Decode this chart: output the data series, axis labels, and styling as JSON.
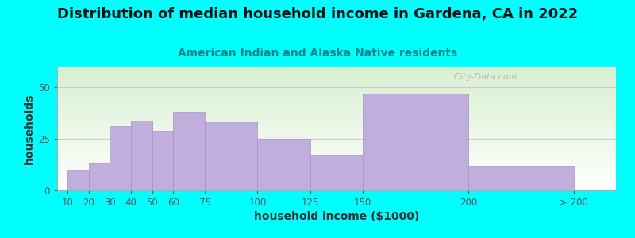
{
  "title": "Distribution of median household income in Gardena, CA in 2022",
  "subtitle": "American Indian and Alaska Native residents",
  "xlabel": "household income ($1000)",
  "ylabel": "households",
  "bg_outer": "#00FFFF",
  "bg_inner_colors": [
    "#d8f0d0",
    "#f5fff5",
    "#ffffff"
  ],
  "bar_color": "#c0aedd",
  "bar_edge_color": "#a890cc",
  "bar_positions": [
    10,
    20,
    30,
    40,
    50,
    60,
    75,
    100,
    125,
    150,
    200
  ],
  "bar_widths": [
    10,
    10,
    10,
    10,
    10,
    15,
    25,
    25,
    25,
    50,
    50
  ],
  "bar_heights": [
    10,
    13,
    31,
    34,
    29,
    38,
    33,
    25,
    17,
    47,
    12
  ],
  "xtick_labels": [
    "10",
    "20",
    "30",
    "40",
    "50",
    "60",
    "75",
    "100",
    "125",
    "150",
    "200",
    "> 200"
  ],
  "xtick_positions": [
    10,
    20,
    30,
    40,
    50,
    60,
    75,
    100,
    125,
    150,
    200,
    250
  ],
  "xlim": [
    5,
    270
  ],
  "ylim": [
    0,
    60
  ],
  "yticks": [
    0,
    25,
    50
  ],
  "watermark": "  City-Data.com",
  "title_fontsize": 13,
  "subtitle_fontsize": 10,
  "axis_label_fontsize": 10
}
